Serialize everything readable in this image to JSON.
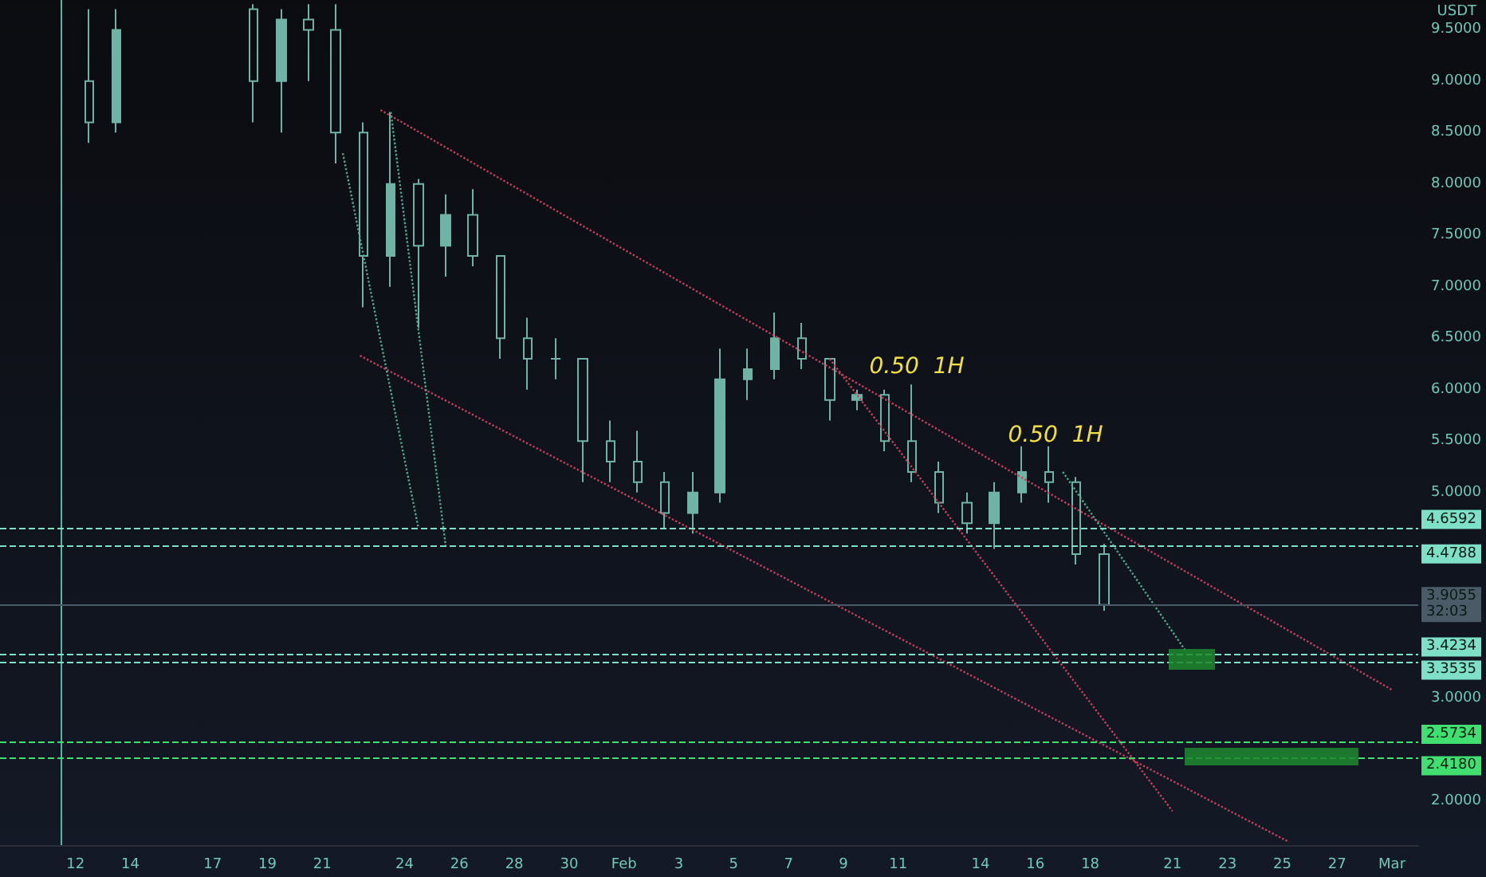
{
  "chart_data": {
    "type": "candlestick",
    "ylabel": "USDT",
    "color": "#6fb3a6",
    "x": [
      "--01-12T12:00",
      "--01-13T12:00",
      "--01-18T12:00",
      "--01-19T12:00",
      "--01-20T12:00",
      "--01-21T12:00",
      "--01-22T12:00",
      "--01-23T12:00",
      "--01-24T12:00",
      "--01-25T12:00",
      "--01-26T12:00",
      "--01-27T12:00",
      "--01-28T12:00",
      "--01-29T12:00",
      "--01-30T12:00",
      "--01-31T12:00",
      "--02-01T12:00",
      "--02-02T12:00",
      "--02-03T12:00",
      "--02-04T12:00",
      "--02-05T12:00",
      "--02-06T12:00",
      "--02-07T12:00",
      "--02-08T12:00",
      "--02-09T12:00",
      "--02-10T12:00",
      "--02-11T12:00",
      "--02-12T12:00",
      "--02-13T12:00",
      "--02-14T12:00",
      "--02-15T12:00",
      "--02-16T12:00",
      "--02-17T12:00",
      "--02-18T12:00"
    ],
    "ohlc": [
      [
        9.0,
        9.7,
        8.4,
        8.6
      ],
      [
        8.6,
        9.7,
        8.5,
        9.5
      ],
      [
        9.7,
        9.75,
        8.6,
        9.0
      ],
      [
        9.0,
        9.7,
        8.5,
        9.6
      ],
      [
        9.6,
        9.75,
        9.0,
        9.5
      ],
      [
        9.5,
        9.75,
        8.2,
        8.5
      ],
      [
        8.5,
        8.6,
        6.8,
        7.3
      ],
      [
        7.3,
        8.7,
        7.0,
        8.0
      ],
      [
        8.0,
        8.05,
        6.6,
        7.4
      ],
      [
        7.4,
        7.9,
        7.1,
        7.7
      ],
      [
        7.7,
        7.95,
        7.2,
        7.3
      ],
      [
        7.3,
        7.3,
        6.3,
        6.5
      ],
      [
        6.5,
        6.7,
        6.0,
        6.3
      ],
      [
        6.3,
        6.5,
        6.1,
        6.3
      ],
      [
        6.3,
        6.3,
        5.1,
        5.5
      ],
      [
        5.5,
        5.7,
        5.1,
        5.3
      ],
      [
        5.3,
        5.6,
        5.0,
        5.1
      ],
      [
        5.1,
        5.2,
        4.65,
        4.8
      ],
      [
        4.8,
        5.2,
        4.6,
        5.0
      ],
      [
        5.0,
        6.4,
        4.9,
        6.1
      ],
      [
        6.1,
        6.4,
        5.9,
        6.2
      ],
      [
        6.2,
        6.75,
        6.1,
        6.5
      ],
      [
        6.5,
        6.65,
        6.2,
        6.3
      ],
      [
        6.3,
        6.3,
        5.7,
        5.9
      ],
      [
        5.9,
        6.0,
        5.8,
        5.95
      ],
      [
        5.95,
        6.0,
        5.4,
        5.5
      ],
      [
        5.5,
        6.05,
        5.1,
        5.2
      ],
      [
        5.2,
        5.3,
        4.8,
        4.9
      ],
      [
        4.9,
        5.0,
        4.6,
        4.7
      ],
      [
        4.7,
        5.1,
        4.45,
        5.0
      ],
      [
        5.0,
        5.45,
        4.9,
        5.2
      ],
      [
        5.2,
        5.45,
        4.9,
        5.1
      ],
      [
        5.1,
        5.15,
        4.3,
        4.4
      ],
      [
        4.4,
        4.5,
        3.85,
        3.9055
      ]
    ],
    "series": [
      {
        "type": "line",
        "color": "#c2405a",
        "line_style": "dotted",
        "x": [
          "--01-23T03:00",
          "--03-01T00:00"
        ],
        "values": [
          8.72,
          3.08
        ]
      },
      {
        "type": "line",
        "color": "#c2405a",
        "line_style": "dotted",
        "x": [
          "--01-22T09:00",
          "--02-25T06:00"
        ],
        "values": [
          6.33,
          1.6
        ]
      },
      {
        "type": "line",
        "color": "#c2405a",
        "line_style": "dotted",
        "x": [
          "--02-08T12:00",
          "--02-21T00:00"
        ],
        "values": [
          6.3,
          1.9
        ]
      },
      {
        "type": "line",
        "color": "#4fa88a",
        "line_style": "dotted",
        "x": [
          "--01-21T18:00",
          "--01-24T12:00"
        ],
        "values": [
          8.3,
          4.66
        ]
      },
      {
        "type": "line",
        "color": "#4fa88a",
        "line_style": "dotted",
        "x": [
          "--01-23T12:00",
          "--01-25T12:00"
        ],
        "values": [
          8.7,
          4.48
        ]
      },
      {
        "type": "line",
        "color": "#4fa88a",
        "line_style": "dotted",
        "x": [
          "--02-17T00:00",
          "--02-21T12:00"
        ],
        "values": [
          5.2,
          3.45
        ]
      }
    ],
    "xlim": [
      "--01-09T06:00",
      "--03-01T23:00"
    ],
    "xticks": [
      {
        "value": "--01-12",
        "label": "12"
      },
      {
        "value": "--01-14",
        "label": "14"
      },
      {
        "value": "--01-17",
        "label": "17"
      },
      {
        "value": "--01-19",
        "label": "19"
      },
      {
        "value": "--01-21",
        "label": "21"
      },
      {
        "value": "--01-24",
        "label": "24"
      },
      {
        "value": "--01-26",
        "label": "26"
      },
      {
        "value": "--01-28",
        "label": "28"
      },
      {
        "value": "--01-30",
        "label": "30"
      },
      {
        "value": "--02-01",
        "label": "Feb"
      },
      {
        "value": "--02-03",
        "label": "3"
      },
      {
        "value": "--02-05",
        "label": "5"
      },
      {
        "value": "--02-07",
        "label": "7"
      },
      {
        "value": "--02-09",
        "label": "9"
      },
      {
        "value": "--02-11",
        "label": "11"
      },
      {
        "value": "--02-14",
        "label": "14"
      },
      {
        "value": "--02-16",
        "label": "16"
      },
      {
        "value": "--02-18",
        "label": "18"
      },
      {
        "value": "--02-21",
        "label": "21"
      },
      {
        "value": "--02-23",
        "label": "23"
      },
      {
        "value": "--02-25",
        "label": "25"
      },
      {
        "value": "--02-27",
        "label": "27"
      },
      {
        "value": "--03-01",
        "label": "Mar"
      }
    ],
    "ylim": [
      1.57,
      9.79
    ],
    "yticks": [
      {
        "value": 2,
        "label": "2.0000"
      },
      {
        "value": 3,
        "label": "3.0000"
      },
      {
        "value": 5,
        "label": "5.0000"
      },
      {
        "value": 5.5,
        "label": "5.5000"
      },
      {
        "value": 6,
        "label": "6.0000"
      },
      {
        "value": 6.5,
        "label": "6.5000"
      },
      {
        "value": 7,
        "label": "7.0000"
      },
      {
        "value": 7.5,
        "label": "7.5000"
      },
      {
        "value": 8,
        "label": "8.0000"
      },
      {
        "value": 8.5,
        "label": "8.5000"
      },
      {
        "value": 9,
        "label": "9.0000"
      },
      {
        "value": 9.5,
        "label": "9.5000"
      }
    ],
    "ref_lines": [
      {
        "axis": "x",
        "value": "--01-11T12:00",
        "color": "#4fb8a8",
        "line_style": "solid"
      },
      {
        "axis": "y",
        "value": 4.6592,
        "label": "4.6592",
        "color": "#7fe0c8",
        "line_style": "dashed"
      },
      {
        "axis": "y",
        "value": 4.4788,
        "label": "4.4788",
        "color": "#7fe0c8",
        "line_style": "dashed"
      },
      {
        "axis": "y",
        "value": 3.9055,
        "label": "3.9055\n32:03",
        "color": "#4a5a66",
        "line_style": "solid"
      },
      {
        "axis": "y",
        "value": 3.4234,
        "label": "3.4234",
        "color": "#7fe0c8",
        "line_style": "dashed"
      },
      {
        "axis": "y",
        "value": 3.3535,
        "label": "3.3535",
        "color": "#7fe0c8",
        "line_style": "dashed"
      },
      {
        "axis": "y",
        "value": 2.5734,
        "label": "2.5734",
        "color": "#3fe070",
        "line_style": "dashed"
      },
      {
        "axis": "y",
        "value": 2.418,
        "label": "2.4180",
        "color": "#3fe070",
        "line_style": "dashed"
      }
    ],
    "annotations": [
      "0.50  1H",
      "0.50  1H"
    ],
    "grid": false
  }
}
